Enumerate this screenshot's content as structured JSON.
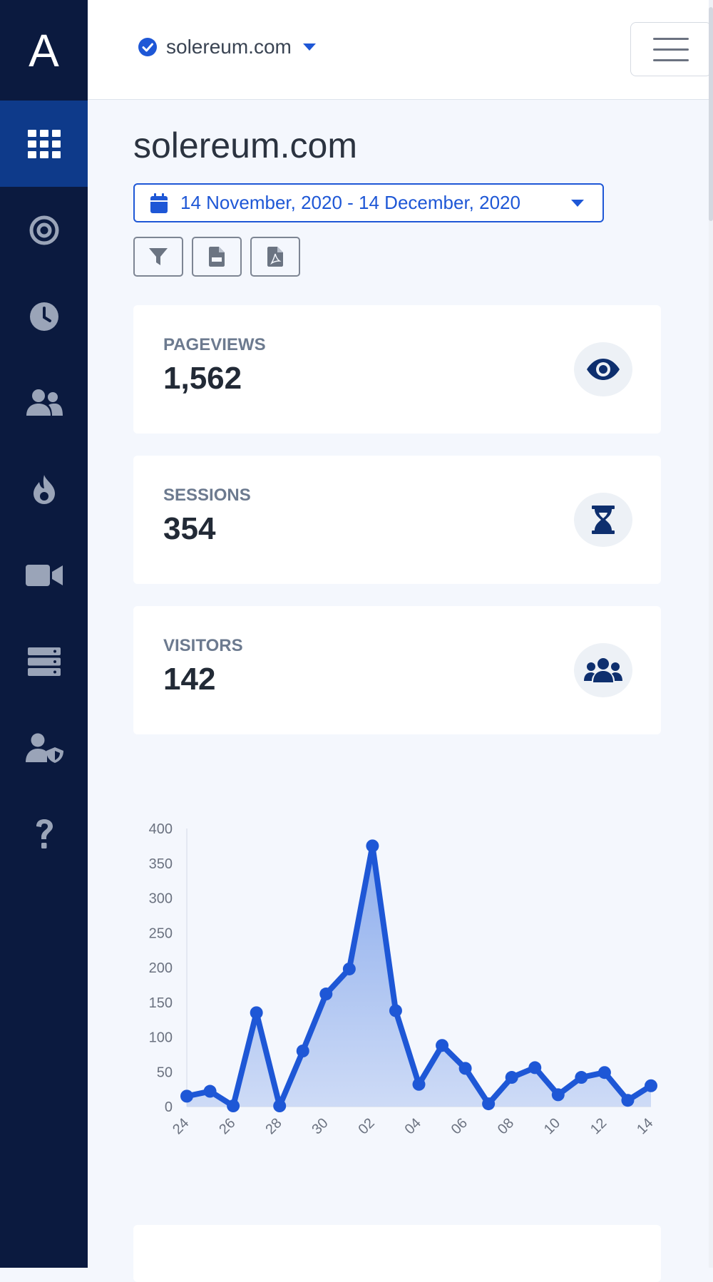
{
  "sidebar": {
    "logo": "A",
    "items": [
      {
        "icon": "grid-icon",
        "active": true
      },
      {
        "icon": "target-icon",
        "active": false
      },
      {
        "icon": "clock-icon",
        "active": false
      },
      {
        "icon": "users-icon",
        "active": false
      },
      {
        "icon": "fire-icon",
        "active": false
      },
      {
        "icon": "video-camera-icon",
        "active": false
      },
      {
        "icon": "server-icon",
        "active": false
      },
      {
        "icon": "user-shield-icon",
        "active": false
      },
      {
        "icon": "question-icon",
        "active": false
      }
    ]
  },
  "topbar": {
    "site": "solereum.com",
    "site_icon": "check-circle-icon"
  },
  "page": {
    "title": "solereum.com",
    "date_range": "14 November, 2020 - 14 December, 2020",
    "tools": [
      "filter-icon",
      "csv-file-icon",
      "pdf-file-icon"
    ]
  },
  "stats": [
    {
      "label": "PAGEVIEWS",
      "value": "1,562",
      "icon": "eye-icon"
    },
    {
      "label": "SESSIONS",
      "value": "354",
      "icon": "hourglass-icon"
    },
    {
      "label": "VISITORS",
      "value": "142",
      "icon": "users-group-icon"
    }
  ],
  "colors": {
    "sidebar": "#0b1a3f",
    "sidebar_active": "#0e3a8a",
    "accent": "#1e57d6",
    "icon_navy": "#0e2f6e"
  },
  "chart_data": {
    "type": "area",
    "x_tick_labels": [
      "24",
      "26",
      "28",
      "30",
      "02",
      "04",
      "06",
      "08",
      "10",
      "12",
      "14"
    ],
    "values": [
      15,
      22,
      1,
      135,
      1,
      80,
      162,
      198,
      375,
      138,
      32,
      88,
      55,
      4,
      42,
      56,
      17,
      42,
      49,
      9,
      30
    ],
    "y_ticks": [
      0,
      50,
      100,
      150,
      200,
      250,
      300,
      350,
      400
    ],
    "ylim": [
      0,
      400
    ]
  }
}
